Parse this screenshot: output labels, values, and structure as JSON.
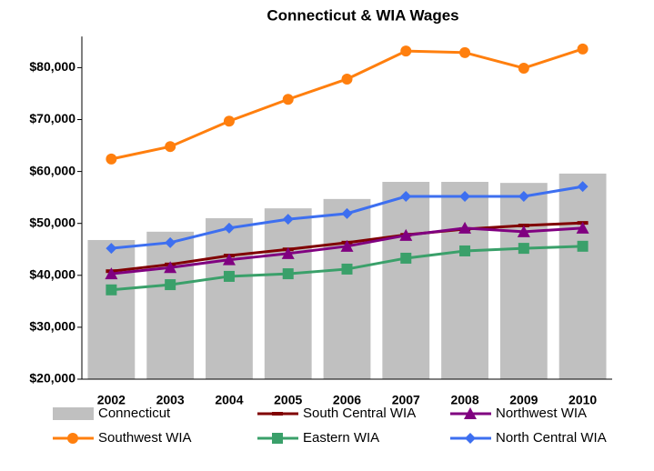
{
  "chart_data": {
    "type": "combo",
    "title": "Connecticut & WIA Wages",
    "categories": [
      "2002",
      "2003",
      "2004",
      "2005",
      "2006",
      "2007",
      "2008",
      "2009",
      "2010"
    ],
    "ylim": [
      20000,
      86000
    ],
    "yticks": [
      {
        "value": 20000,
        "label": "$20,000"
      },
      {
        "value": 30000,
        "label": "$30,000"
      },
      {
        "value": 40000,
        "label": "$40,000"
      },
      {
        "value": 50000,
        "label": "$50,000"
      },
      {
        "value": 60000,
        "label": "$60,000"
      },
      {
        "value": 70000,
        "label": "$70,000"
      },
      {
        "value": 80000,
        "label": "$80,000"
      }
    ],
    "series": [
      {
        "name": "Connecticut",
        "type": "bar",
        "color": "#c0c0c0",
        "values": [
          46800,
          48400,
          51000,
          52900,
          54700,
          58000,
          58000,
          57800,
          59600
        ]
      },
      {
        "name": "South Central WIA",
        "type": "line",
        "marker": "dash",
        "color": "#800000",
        "values": [
          40800,
          42100,
          43800,
          45000,
          46300,
          47800,
          48900,
          49600,
          50100
        ]
      },
      {
        "name": "Northwest WIA",
        "type": "line",
        "marker": "triangle",
        "color": "#800080",
        "values": [
          40300,
          41500,
          43000,
          44200,
          45600,
          47700,
          49100,
          48400,
          49100
        ]
      },
      {
        "name": "Southwest WIA",
        "type": "line",
        "marker": "circle",
        "color": "#ff7f0e",
        "values": [
          62400,
          64800,
          69700,
          73900,
          77800,
          83200,
          82900,
          79900,
          83600
        ]
      },
      {
        "name": "Eastern WIA",
        "type": "line",
        "marker": "square",
        "color": "#3aa06a",
        "values": [
          37200,
          38200,
          39800,
          40300,
          41200,
          43300,
          44700,
          45200,
          45600
        ]
      },
      {
        "name": "North Central WIA",
        "type": "line",
        "marker": "diamond",
        "color": "#3d6ff0",
        "values": [
          45200,
          46300,
          49100,
          50800,
          51900,
          55200,
          55200,
          55200,
          57100
        ]
      }
    ]
  }
}
